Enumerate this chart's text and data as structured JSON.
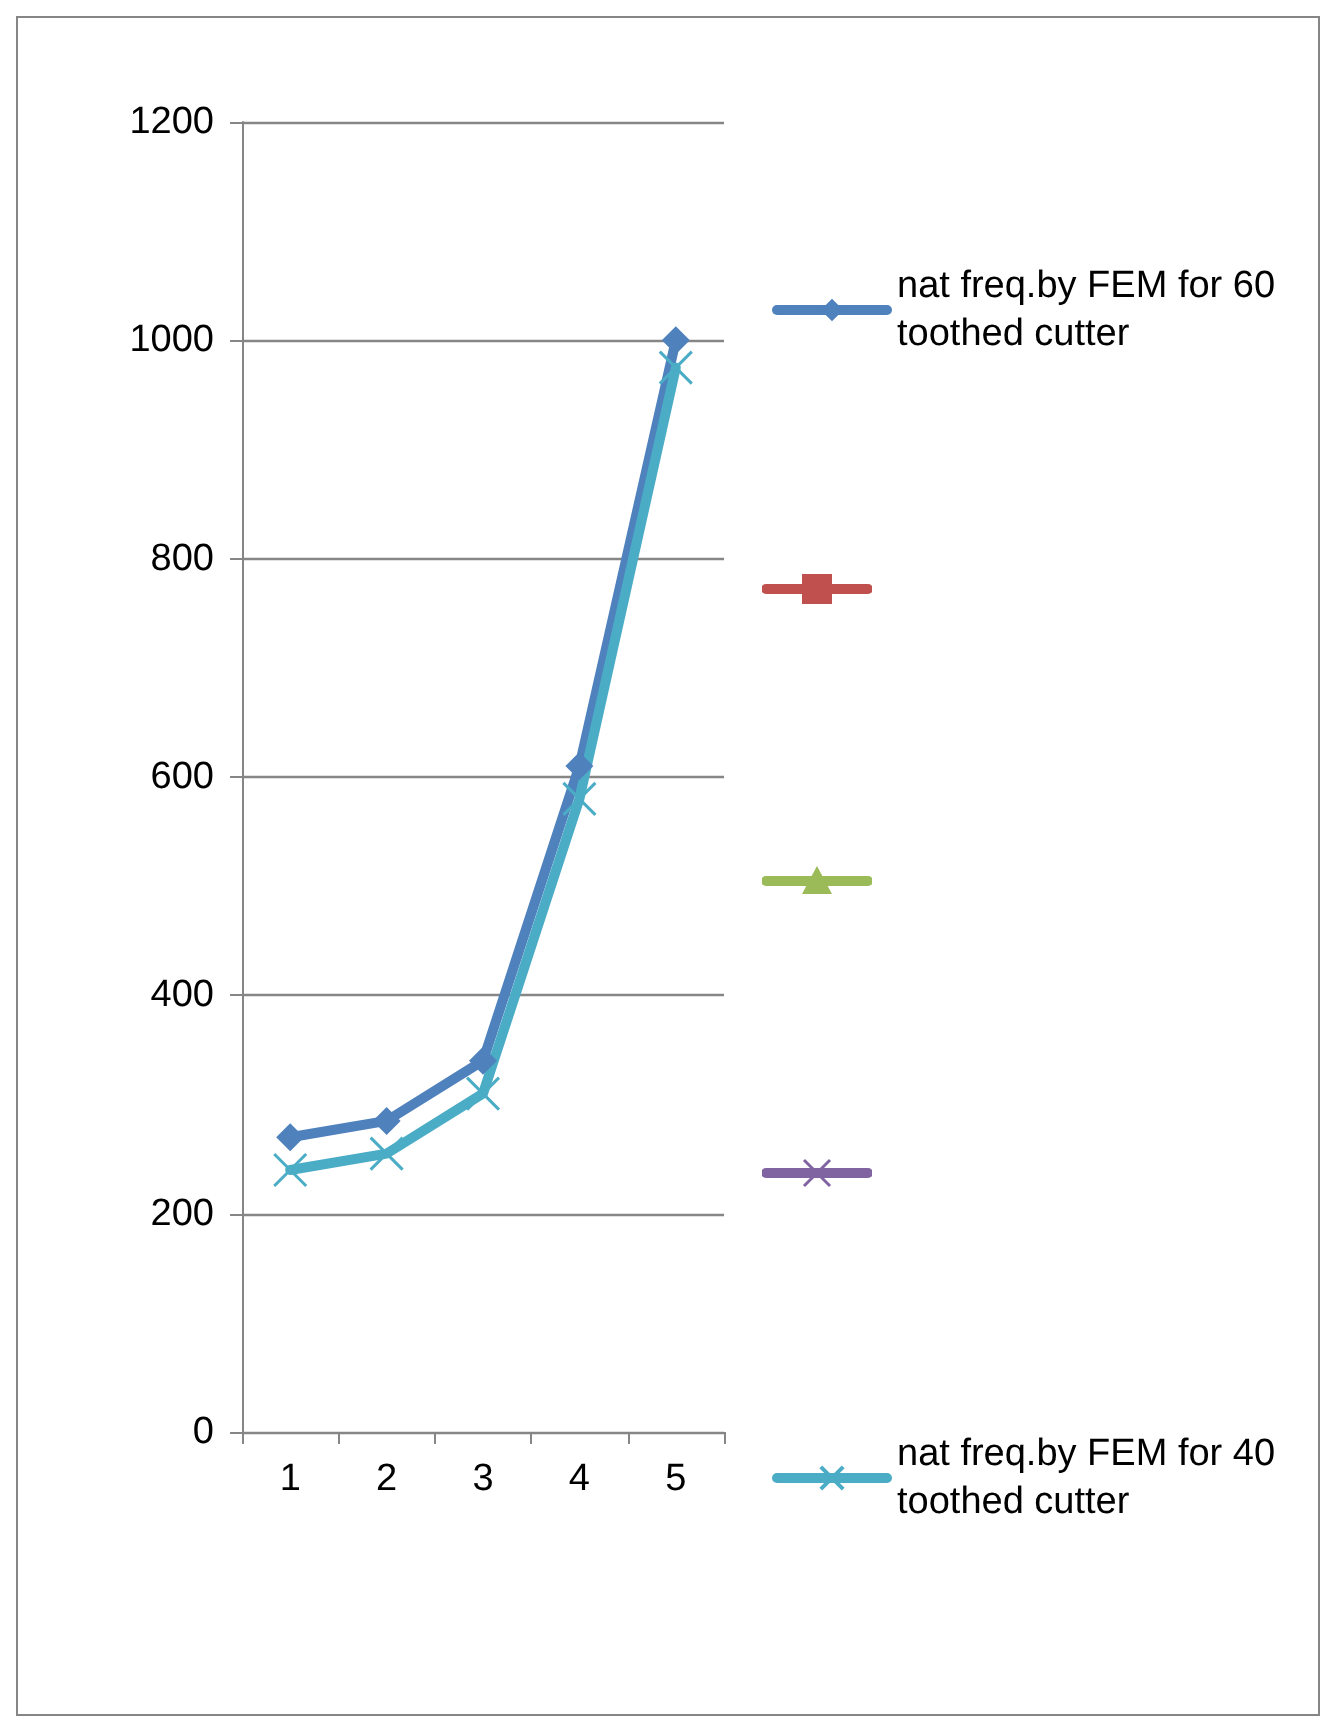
{
  "chart_data": {
    "type": "line",
    "categories": [
      "1",
      "2",
      "3",
      "4",
      "5"
    ],
    "series": [
      {
        "name": "nat freq.by FEM for 60 toothed cutter",
        "color": "#4f81bd",
        "marker": "diamond",
        "values": [
          270,
          285,
          340,
          610,
          1000
        ]
      },
      {
        "color": "#c0504d",
        "marker": "square",
        "values": [
          null,
          null,
          null,
          null,
          null
        ]
      },
      {
        "color": "#9bbb59",
        "marker": "triangle",
        "values": [
          null,
          null,
          null,
          null,
          null
        ]
      },
      {
        "color": "#8064a2",
        "marker": "cross",
        "values": [
          null,
          null,
          null,
          null,
          null
        ]
      },
      {
        "name": "nat freq.by FEM for 40 toothed cutter",
        "color": "#4bacc6",
        "marker": "cross",
        "values": [
          240,
          255,
          310,
          580,
          975
        ]
      }
    ],
    "ylim": [
      0,
      1200
    ],
    "yticks": [
      0,
      200,
      400,
      600,
      800,
      1000,
      1200
    ],
    "grid": "y",
    "legend": "right"
  }
}
